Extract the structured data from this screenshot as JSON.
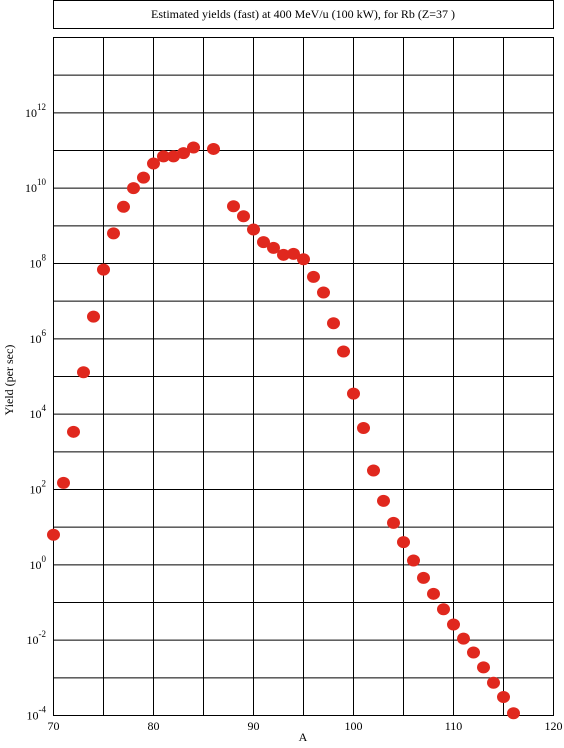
{
  "chart_data": {
    "type": "scatter",
    "title": "Estimated yields (fast) at 400 MeV/u (100 kW), for Rb (Z=37 )",
    "x_label": "A",
    "y_label": "Yield (per sec)",
    "log_y": true,
    "grid": true,
    "xlim": [
      70,
      120
    ],
    "xticks": [
      70,
      80,
      90,
      100,
      110,
      120
    ],
    "x_minor_grid": [
      75,
      85,
      95,
      105,
      115
    ],
    "ylim": [
      0.0001,
      100000000000000.0
    ],
    "yticks": [
      {
        "value": 0.0001,
        "label": "10",
        "exponent": "-4"
      },
      {
        "value": 0.01,
        "label": "10",
        "exponent": "-2"
      },
      {
        "value": 1,
        "label": "10",
        "exponent": "0"
      },
      {
        "value": 100,
        "label": "10",
        "exponent": "2"
      },
      {
        "value": 10000,
        "label": "10",
        "exponent": "4"
      },
      {
        "value": 1000000,
        "label": "10",
        "exponent": "6"
      },
      {
        "value": 100000000,
        "label": "10",
        "exponent": "8"
      },
      {
        "value": 10000000000,
        "label": "10",
        "exponent": "10"
      },
      {
        "value": 1000000000000,
        "label": "10",
        "exponent": "12"
      }
    ],
    "y_minor_grid": [
      0.001,
      0.1,
      10,
      1000,
      100000,
      10000000,
      1000000000,
      100000000000,
      10000000000000
    ],
    "color": "#e0281e",
    "x": [
      70,
      71,
      72,
      73,
      74,
      75,
      76,
      77,
      78,
      79,
      80,
      81,
      82,
      83,
      84,
      86,
      88,
      89,
      90,
      91,
      92,
      93,
      94,
      95,
      96,
      97,
      98,
      99,
      100,
      101,
      102,
      103,
      104,
      105,
      106,
      107,
      108,
      109,
      110,
      111,
      112,
      113,
      114,
      115,
      116
    ],
    "values": [
      6.3,
      150,
      3400,
      130000,
      3900000,
      69000000,
      630000000,
      3200000000,
      10000000000,
      19000000000,
      45000000000,
      70000000000,
      70000000000,
      85000000000,
      120000000000,
      110000000000,
      3300000000,
      1800000000,
      800000000,
      370000000,
      260000000,
      170000000,
      180000000,
      130000000,
      44000000,
      17000000,
      2600000,
      460000,
      35000,
      4300,
      320,
      50,
      13,
      4,
      1.3,
      0.45,
      0.17,
      0.066,
      0.026,
      0.011,
      0.0047,
      0.0019,
      0.00074,
      0.00031,
      0.000115
    ]
  }
}
